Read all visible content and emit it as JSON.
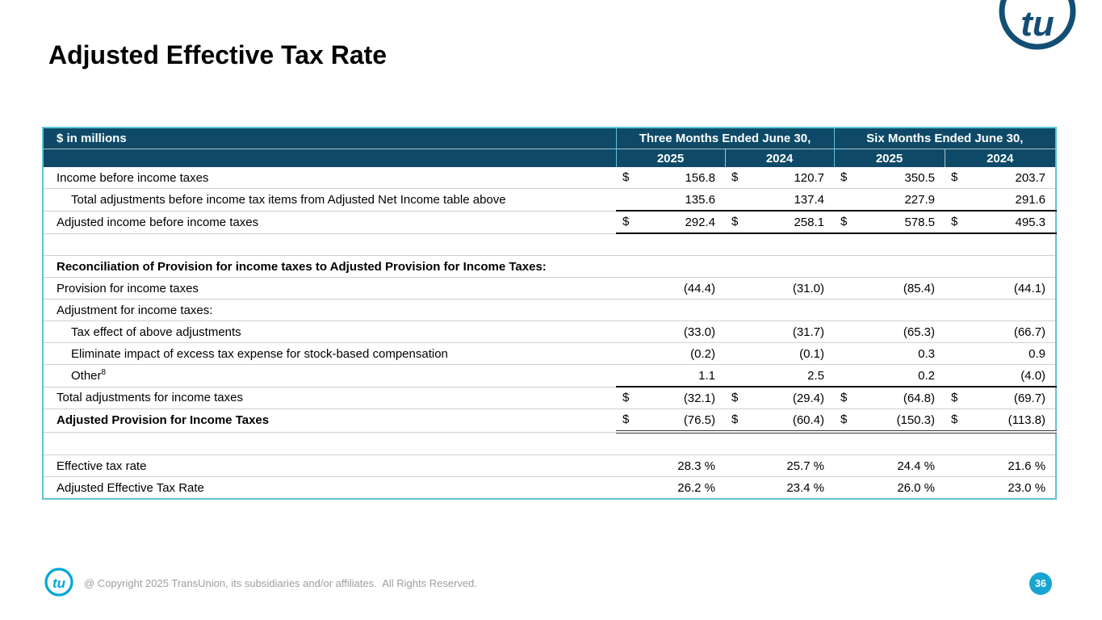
{
  "slide": {
    "title": "Adjusted Effective Tax Rate",
    "page_number": "36",
    "footer": "@ Copyright 2025 TransUnion, its subsidiaries and/or affiliates.  All Rights Reserved.",
    "logo_text": "tu"
  },
  "colors": {
    "header_bg": "#0E4A68",
    "table_border_cyan": "#5FC3D6",
    "accent_cyan": "#18A5D2",
    "logo_navy": "#134E75",
    "logo_cyan": "#00A7D7",
    "footer_text_gray": "#9E9E9E",
    "subtotal_rule": "#000000"
  },
  "table": {
    "corner_label": "$ in millions",
    "col_groups": [
      "Three Months Ended June 30,",
      "Six Months Ended June 30,"
    ],
    "col_years": [
      "2025",
      "2024",
      "2025",
      "2024"
    ],
    "rows": [
      {
        "label": "Income before income taxes",
        "indent": 0,
        "dollar": true,
        "values": [
          "156.8",
          "120.7",
          "350.5",
          "203.7"
        ]
      },
      {
        "label": "Total adjustments before income tax items from Adjusted Net Income table above",
        "indent": 1,
        "values": [
          "135.6",
          "137.4",
          "227.9",
          "291.6"
        ],
        "border": "black"
      },
      {
        "label": "Adjusted income before income taxes",
        "indent": 0,
        "dollar": true,
        "values": [
          "292.4",
          "258.1",
          "578.5",
          "495.3"
        ],
        "border": "black"
      },
      {
        "label": "",
        "blank": true,
        "values": [
          "",
          "",
          "",
          ""
        ]
      },
      {
        "label": "Reconciliation of Provision for income taxes to Adjusted Provision for Income Taxes:",
        "bold": true,
        "values": [
          "",
          "",
          "",
          ""
        ]
      },
      {
        "label": "Provision for income taxes",
        "values": [
          "(44.4)",
          "(31.0)",
          "(85.4)",
          "(44.1)"
        ]
      },
      {
        "label": "Adjustment for income taxes:",
        "values": [
          "",
          "",
          "",
          ""
        ]
      },
      {
        "label": "Tax effect of above adjustments",
        "indent": 1,
        "values": [
          "(33.0)",
          "(31.7)",
          "(65.3)",
          "(66.7)"
        ]
      },
      {
        "label": "Eliminate impact of excess tax expense for stock-based compensation",
        "indent": 1,
        "values": [
          "(0.2)",
          "(0.1)",
          "0.3",
          "0.9"
        ]
      },
      {
        "label": "Other",
        "sup": "8",
        "indent": 1,
        "values": [
          "1.1",
          "2.5",
          "0.2",
          "(4.0)"
        ],
        "border": "black"
      },
      {
        "label": "Total adjustments for income taxes",
        "dollar": true,
        "values": [
          "(32.1)",
          "(29.4)",
          "(64.8)",
          "(69.7)"
        ]
      },
      {
        "label": "Adjusted Provision for Income Taxes",
        "bold": true,
        "dollar": true,
        "values": [
          "(76.5)",
          "(60.4)",
          "(150.3)",
          "(113.8)"
        ],
        "border": "double"
      },
      {
        "label": "",
        "blank": true,
        "values": [
          "",
          "",
          "",
          ""
        ]
      },
      {
        "label": "Effective tax rate",
        "values": [
          "28.3 %",
          "25.7 %",
          "24.4 %",
          "21.6 %"
        ]
      },
      {
        "label": "Adjusted Effective Tax Rate",
        "values": [
          "26.2 %",
          "23.4 %",
          "26.0 %",
          "23.0 %"
        ]
      }
    ]
  }
}
